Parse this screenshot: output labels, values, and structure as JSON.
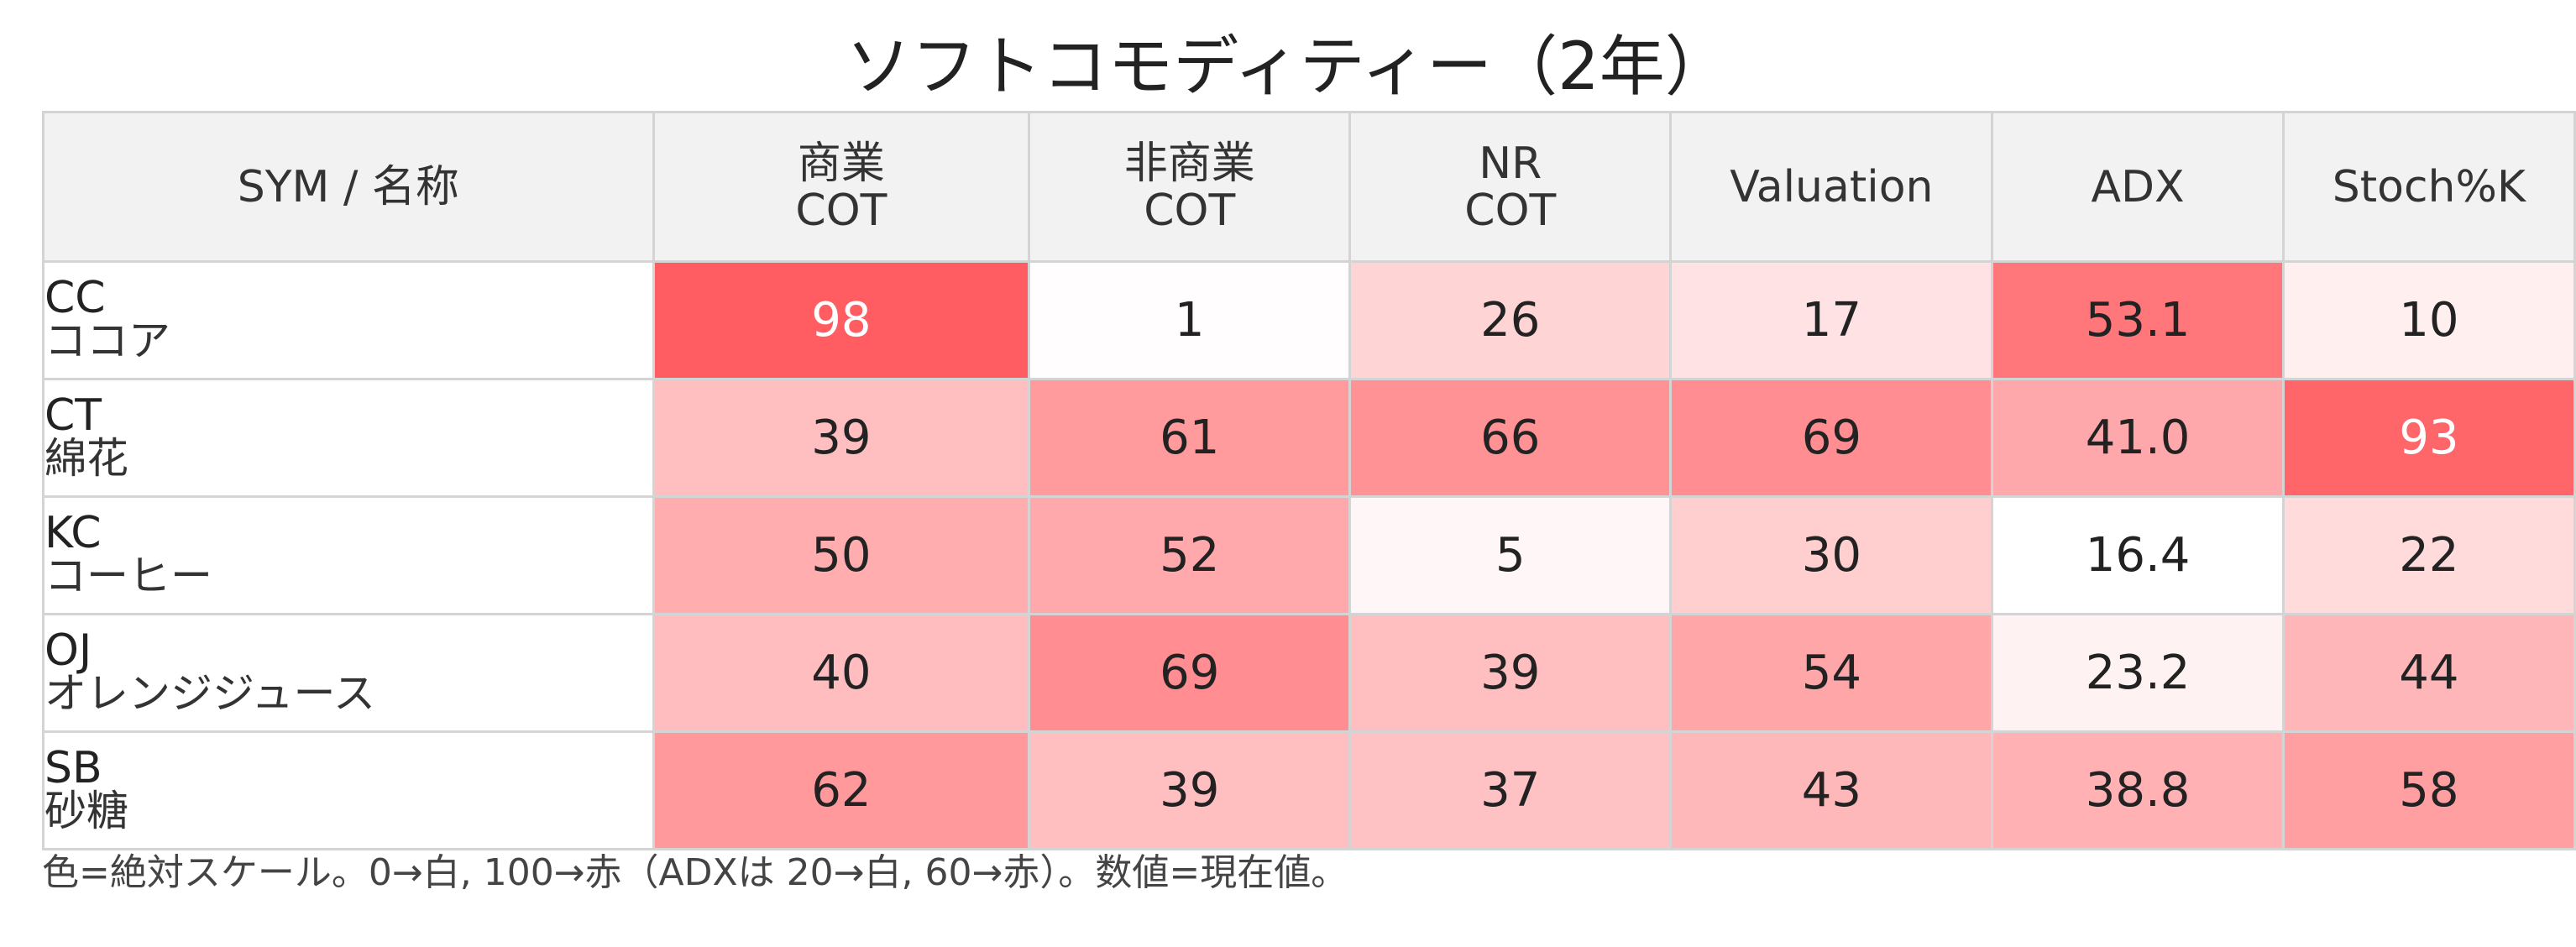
{
  "chart_data": {
    "type": "heatmap",
    "title": "ソフトコモディティー（2年）",
    "row_header_label": "SYM / 名称",
    "columns": [
      "商業\nCOT",
      "非商業\nCOT",
      "NR\nCOT",
      "Valuation",
      "ADX",
      "Stoch%K"
    ],
    "rows": [
      {
        "sym": "CC",
        "name": "ココア",
        "values": [
          "98",
          "1",
          "26",
          "17",
          "53.1",
          "10"
        ]
      },
      {
        "sym": "CT",
        "name": "綿花",
        "values": [
          "39",
          "61",
          "66",
          "69",
          "41.0",
          "93"
        ]
      },
      {
        "sym": "KC",
        "name": "コーヒー",
        "values": [
          "50",
          "52",
          "5",
          "30",
          "16.4",
          "22"
        ]
      },
      {
        "sym": "OJ",
        "name": "オレンジジュース",
        "values": [
          "40",
          "69",
          "39",
          "54",
          "23.2",
          "44"
        ]
      },
      {
        "sym": "SB",
        "name": "砂糖",
        "values": [
          "62",
          "39",
          "37",
          "43",
          "38.8",
          "58"
        ]
      }
    ],
    "color_scale": {
      "low_color": "#ffffff",
      "high_color": "#ff5a5f",
      "default_range": [
        0,
        100
      ],
      "column_ranges": {
        "ADX": [
          20,
          60
        ]
      }
    },
    "footnote": "色=絶対スケール。0→白, 100→赤（ADXは 20→白, 60→赤）。数値=現在値。"
  }
}
